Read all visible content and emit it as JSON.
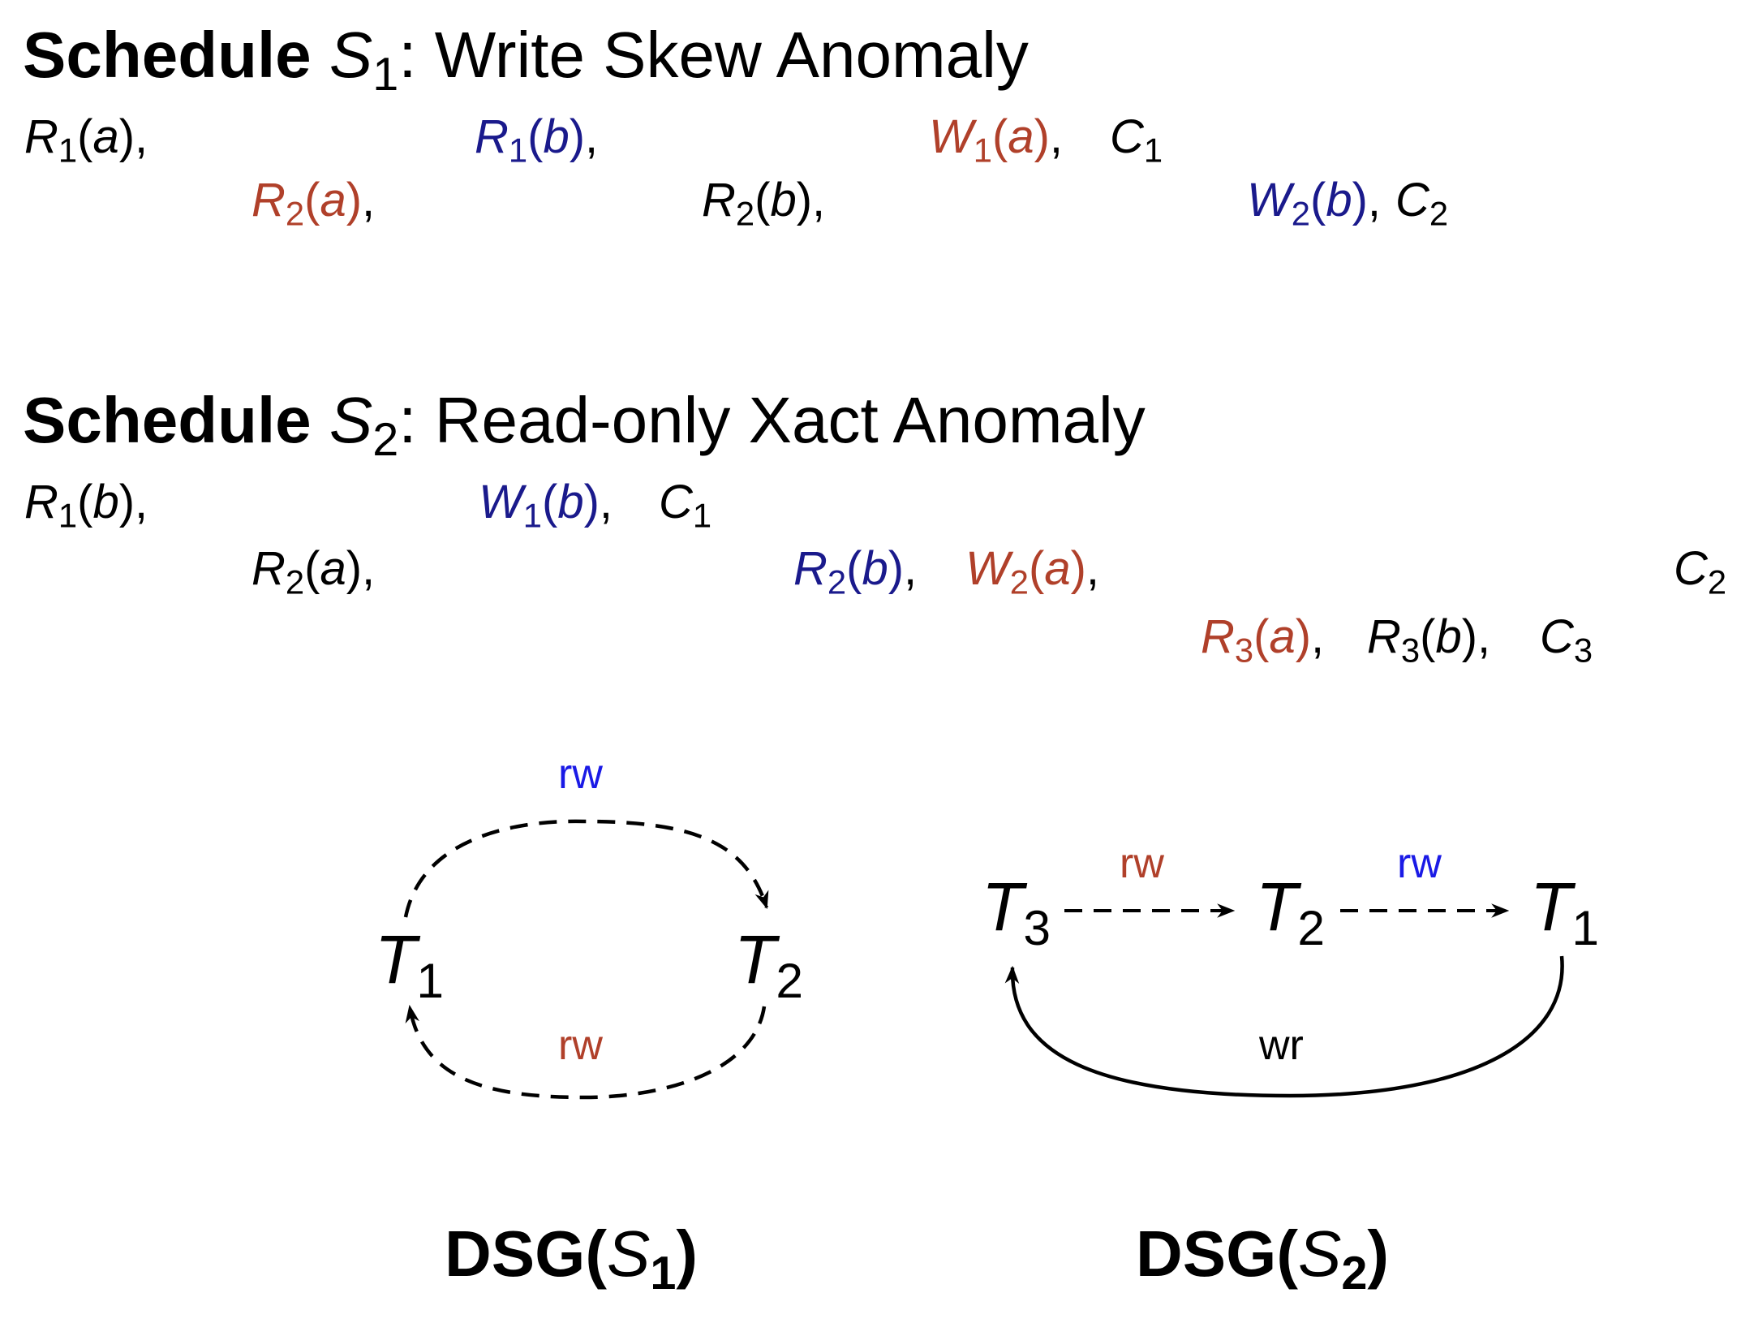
{
  "colors": {
    "black": "#000000",
    "blue": "#1a1a8c",
    "red": "#b0402a",
    "edge_blue": "#1a1ae6"
  },
  "schedule1": {
    "title_bold": "Schedule",
    "title_sym": "S",
    "title_sub": "1",
    "title_rest": ": Write Skew Anomaly",
    "row1": [
      {
        "op": "R",
        "sub": "1",
        "arg": "a",
        "tail": ",",
        "color": "black"
      },
      {
        "op": "R",
        "sub": "1",
        "arg": "b",
        "tail": ",",
        "color": "blue"
      },
      {
        "op": "W",
        "sub": "1",
        "arg": "a",
        "tail": ",",
        "color": "red"
      },
      {
        "op": "C",
        "sub": "1",
        "arg": "",
        "tail": "",
        "color": "black"
      }
    ],
    "row2": [
      {
        "op": "R",
        "sub": "2",
        "arg": "a",
        "tail": ",",
        "color": "red"
      },
      {
        "op": "R",
        "sub": "2",
        "arg": "b",
        "tail": ",",
        "color": "black"
      },
      {
        "op": "W",
        "sub": "2",
        "arg": "b",
        "tail": ",",
        "color": "blue"
      },
      {
        "op": "C",
        "sub": "2",
        "arg": "",
        "tail": "",
        "color": "black"
      }
    ]
  },
  "schedule2": {
    "title_bold": "Schedule",
    "title_sym": "S",
    "title_sub": "2",
    "title_rest": ": Read-only Xact Anomaly",
    "row1": [
      {
        "op": "R",
        "sub": "1",
        "arg": "b",
        "tail": ",",
        "color": "black"
      },
      {
        "op": "W",
        "sub": "1",
        "arg": "b",
        "tail": ",",
        "color": "blue"
      },
      {
        "op": "C",
        "sub": "1",
        "arg": "",
        "tail": "",
        "color": "black"
      }
    ],
    "row2": [
      {
        "op": "R",
        "sub": "2",
        "arg": "a",
        "tail": ",",
        "color": "black"
      },
      {
        "op": "R",
        "sub": "2",
        "arg": "b",
        "tail": ",",
        "color": "blue"
      },
      {
        "op": "W",
        "sub": "2",
        "arg": "a",
        "tail": ",",
        "color": "red"
      },
      {
        "op": "C",
        "sub": "2",
        "arg": "",
        "tail": "",
        "color": "black"
      }
    ],
    "row3": [
      {
        "op": "R",
        "sub": "3",
        "arg": "a",
        "tail": ",",
        "color": "red"
      },
      {
        "op": "R",
        "sub": "3",
        "arg": "b",
        "tail": ",",
        "color": "black"
      },
      {
        "op": "C",
        "sub": "3",
        "arg": "",
        "tail": "",
        "color": "black"
      }
    ]
  },
  "dsg1": {
    "node_t1": {
      "sym": "T",
      "sub": "1"
    },
    "node_t2": {
      "sym": "T",
      "sub": "2"
    },
    "edge_top_label": "rw",
    "edge_bottom_label": "rw",
    "caption_bold": "DSG(",
    "caption_sym": "S",
    "caption_sub": "1",
    "caption_close": ")"
  },
  "dsg2": {
    "node_t3": {
      "sym": "T",
      "sub": "3"
    },
    "node_t2": {
      "sym": "T",
      "sub": "2"
    },
    "node_t1": {
      "sym": "T",
      "sub": "1"
    },
    "edge_t3_t2_label": "rw",
    "edge_t2_t1_label": "rw",
    "edge_t1_t3_label": "wr",
    "caption_bold": "DSG(",
    "caption_sym": "S",
    "caption_sub": "2",
    "caption_close": ")"
  }
}
